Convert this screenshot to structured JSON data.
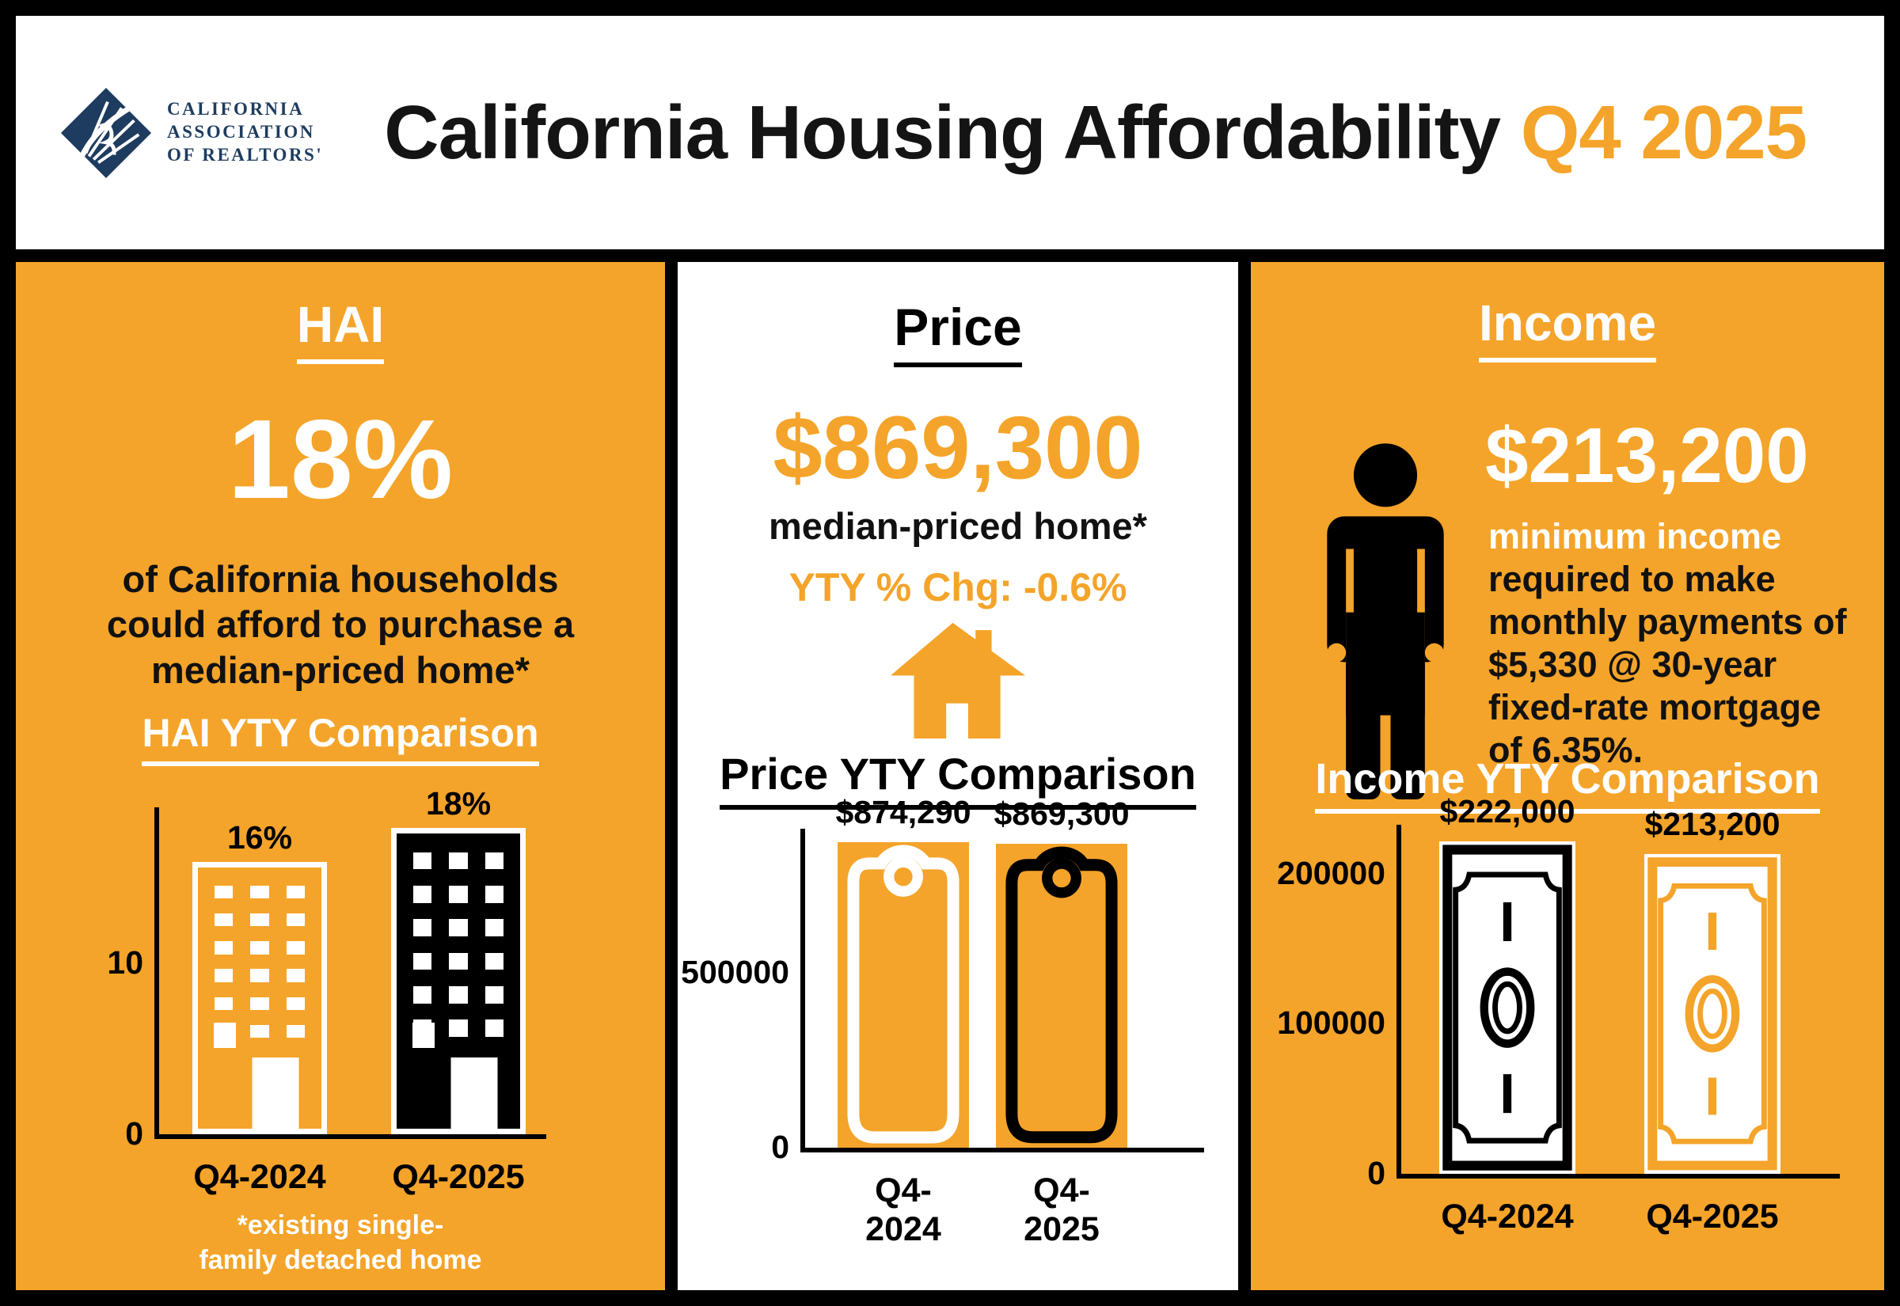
{
  "header": {
    "logo_line1": "CALIFORNIA",
    "logo_line2": "ASSOCIATION",
    "logo_line3": "OF REALTORS'",
    "title_black": "California Housing Affordability",
    "title_orange": "Q4 2025"
  },
  "colors": {
    "orange": "#F4A42A",
    "navy": "#1E3C5F",
    "black": "#000000",
    "white": "#FFFFFF"
  },
  "panels": {
    "hai": {
      "title": "HAI",
      "headline": "18%",
      "description": "of California households could afford to purchase a median-priced home*",
      "chart_title": "HAI YTY Comparison",
      "footnote_line1": "*existing single-",
      "footnote_line2": "family detached home"
    },
    "price": {
      "title": "Price",
      "headline": "$869,300",
      "subhead": "median-priced home*",
      "yty_change": "YTY % Chg: -0.6%",
      "chart_title": "Price YTY Comparison"
    },
    "income": {
      "title": "Income",
      "headline": "$213,200",
      "desc_white": "minimum income",
      "desc_part1": "required to make monthly payments of ",
      "desc_bold1": "$5,330 @",
      "desc_part2": " 30-year fixed-rate mortgage of ",
      "desc_bold2": "6.35%",
      "desc_part3": ".",
      "chart_title": "Income YTY Comparison"
    }
  },
  "chart_data": [
    {
      "id": "hai-yty",
      "type": "bar",
      "title": "HAI YTY Comparison",
      "categories": [
        "Q4-2024",
        "Q4-2025"
      ],
      "values": [
        16,
        18
      ],
      "value_labels": [
        "16%",
        "18%"
      ],
      "yticks": [
        {
          "value": 0,
          "label": "0"
        },
        {
          "value": 10,
          "label": "10"
        }
      ],
      "ylim": [
        0,
        19.2
      ],
      "xlabel": "",
      "ylabel": "",
      "grid": false,
      "legend": "none",
      "icon": "building"
    },
    {
      "id": "price-yty",
      "type": "bar",
      "title": "Price YTY Comparison",
      "categories": [
        "Q4-2024",
        "Q4-2025"
      ],
      "values": [
        874290,
        869300
      ],
      "value_labels": [
        "$874,290",
        "$869,300"
      ],
      "yticks": [
        {
          "value": 0,
          "label": "0"
        },
        {
          "value": 500000,
          "label": "500000"
        }
      ],
      "ylim": [
        0,
        912000
      ],
      "xlabel": "",
      "ylabel": "",
      "grid": false,
      "legend": "none",
      "icon": "price-tag"
    },
    {
      "id": "income-yty",
      "type": "bar",
      "title": "Income YTY Comparison",
      "categories": [
        "Q4-2024",
        "Q4-2025"
      ],
      "values": [
        222000,
        213200
      ],
      "value_labels": [
        "$222,000",
        "$213,200"
      ],
      "yticks": [
        {
          "value": 0,
          "label": "0"
        },
        {
          "value": 100000,
          "label": "100000"
        },
        {
          "value": 200000,
          "label": "200000"
        }
      ],
      "ylim": [
        0,
        233000
      ],
      "xlabel": "",
      "ylabel": "",
      "grid": false,
      "legend": "none",
      "icon": "money-bill"
    }
  ]
}
